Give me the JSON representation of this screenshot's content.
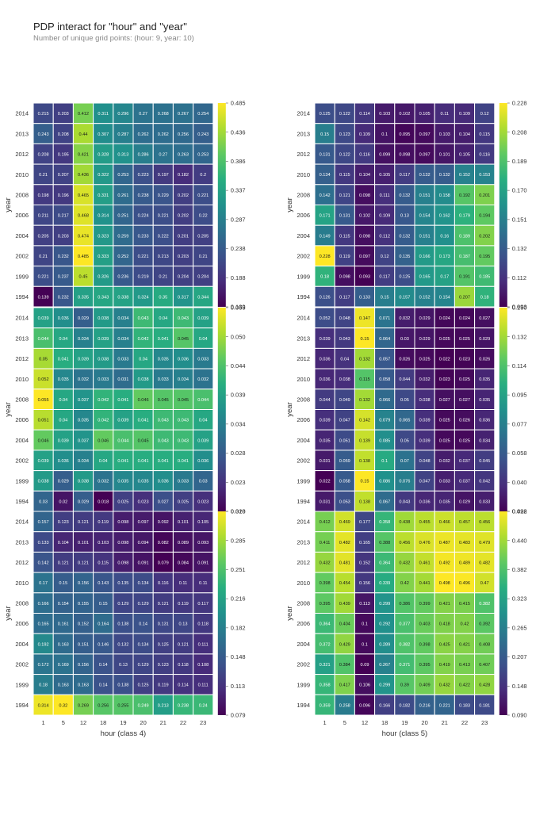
{
  "title": "PDP interact for \"hour\" and \"year\"",
  "subtitle": "Number of unique grid points: (hour: 9, year: 10)",
  "colormap": [
    "#440154",
    "#472d7b",
    "#3b528b",
    "#2c728e",
    "#21918c",
    "#28ae80",
    "#5ec962",
    "#addc30",
    "#fde725"
  ],
  "chart_data": [
    {
      "type": "heatmap",
      "xlabel": "hour (class 0)",
      "ylabel": "year",
      "x": [
        "1",
        "5",
        "12",
        "18",
        "19",
        "20",
        "21",
        "22",
        "23"
      ],
      "y": [
        "2014",
        "2013",
        "2012",
        "2010",
        "2008",
        "2006",
        "2004",
        "2002",
        "1999",
        "1994"
      ],
      "colorbar_ticks": [
        "0.485",
        "0.436",
        "0.386",
        "0.337",
        "0.287",
        "0.238",
        "0.188",
        "0.139"
      ],
      "vmin": 0.139,
      "vmax": 0.485,
      "values": [
        [
          0.215,
          0.203,
          0.412,
          0.311,
          0.296,
          0.27,
          0.268,
          0.267,
          0.254
        ],
        [
          0.243,
          0.208,
          0.44,
          0.307,
          0.287,
          0.262,
          0.262,
          0.256,
          0.243
        ],
        [
          0.208,
          0.195,
          0.421,
          0.328,
          0.313,
          0.286,
          0.27,
          0.263,
          0.253
        ],
        [
          0.21,
          0.207,
          0.436,
          0.322,
          0.253,
          0.223,
          0.197,
          0.182,
          0.2
        ],
        [
          0.198,
          0.196,
          0.465,
          0.331,
          0.261,
          0.238,
          0.229,
          0.202,
          0.221
        ],
        [
          0.211,
          0.217,
          0.468,
          0.314,
          0.251,
          0.224,
          0.221,
          0.202,
          0.22
        ],
        [
          0.205,
          0.203,
          0.474,
          0.323,
          0.259,
          0.233,
          0.222,
          0.201,
          0.205
        ],
        [
          0.21,
          0.232,
          0.485,
          0.333,
          0.252,
          0.221,
          0.213,
          0.203,
          0.21
        ],
        [
          0.221,
          0.237,
          0.45,
          0.326,
          0.236,
          0.219,
          0.21,
          0.204,
          0.204
        ],
        [
          0.139,
          0.232,
          0.335,
          0.343,
          0.338,
          0.324,
          0.35,
          0.317,
          0.344
        ]
      ]
    },
    {
      "type": "heatmap",
      "xlabel": "hour (class 1)",
      "ylabel": "year",
      "x": [
        "1",
        "5",
        "12",
        "18",
        "19",
        "20",
        "21",
        "22",
        "23"
      ],
      "y": [
        "2014",
        "2013",
        "2012",
        "2010",
        "2008",
        "2006",
        "2004",
        "2002",
        "1999",
        "1994"
      ],
      "colorbar_ticks": [
        "0.228",
        "0.208",
        "0.189",
        "0.170",
        "0.151",
        "0.132",
        "0.112",
        "0.093"
      ],
      "vmin": 0.093,
      "vmax": 0.228,
      "values": [
        [
          0.125,
          0.122,
          0.114,
          0.103,
          0.102,
          0.105,
          0.11,
          0.109,
          0.12
        ],
        [
          0.15,
          0.123,
          0.109,
          0.1,
          0.095,
          0.097,
          0.103,
          0.104,
          0.115
        ],
        [
          0.131,
          0.122,
          0.116,
          0.099,
          0.098,
          0.097,
          0.101,
          0.105,
          0.116
        ],
        [
          0.134,
          0.115,
          0.104,
          0.105,
          0.117,
          0.132,
          0.132,
          0.152,
          0.153
        ],
        [
          0.142,
          0.121,
          0.098,
          0.111,
          0.132,
          0.151,
          0.158,
          0.192,
          0.201
        ],
        [
          0.171,
          0.131,
          0.102,
          0.109,
          0.13,
          0.154,
          0.162,
          0.179,
          0.194
        ],
        [
          0.149,
          0.115,
          0.098,
          0.112,
          0.132,
          0.151,
          0.16,
          0.189,
          0.202
        ],
        [
          0.228,
          0.119,
          0.097,
          0.12,
          0.135,
          0.166,
          0.173,
          0.187,
          0.195
        ],
        [
          0.18,
          0.098,
          0.093,
          0.117,
          0.125,
          0.165,
          0.17,
          0.191,
          0.185
        ],
        [
          0.126,
          0.117,
          0.133,
          0.15,
          0.157,
          0.152,
          0.154,
          0.207,
          0.18
        ]
      ]
    },
    {
      "type": "heatmap",
      "xlabel": "hour (class 2)",
      "ylabel": "year",
      "x": [
        "1",
        "5",
        "12",
        "18",
        "19",
        "20",
        "21",
        "22",
        "23"
      ],
      "y": [
        "2014",
        "2013",
        "2012",
        "2010",
        "2008",
        "2006",
        "2004",
        "2002",
        "1999",
        "1994"
      ],
      "colorbar_ticks": [
        "0.055",
        "0.050",
        "0.044",
        "0.039",
        "0.034",
        "0.028",
        "0.023",
        "0.018"
      ],
      "vmin": 0.018,
      "vmax": 0.055,
      "values": [
        [
          0.039,
          0.036,
          0.029,
          0.038,
          0.034,
          0.043,
          0.04,
          0.043,
          0.039
        ],
        [
          0.044,
          0.04,
          0.034,
          0.039,
          0.034,
          0.042,
          0.041,
          0.045,
          0.04
        ],
        [
          0.05,
          0.041,
          0.039,
          0.038,
          0.033,
          0.04,
          0.035,
          0.036,
          0.033
        ],
        [
          0.052,
          0.035,
          0.032,
          0.033,
          0.031,
          0.038,
          0.033,
          0.034,
          0.032
        ],
        [
          0.055,
          0.04,
          0.037,
          0.042,
          0.041,
          0.046,
          0.045,
          0.045,
          0.044
        ],
        [
          0.051,
          0.04,
          0.035,
          0.042,
          0.039,
          0.041,
          0.043,
          0.043,
          0.04
        ],
        [
          0.046,
          0.039,
          0.037,
          0.046,
          0.044,
          0.045,
          0.043,
          0.043,
          0.039
        ],
        [
          0.039,
          0.036,
          0.034,
          0.04,
          0.041,
          0.041,
          0.041,
          0.041,
          0.036
        ],
        [
          0.038,
          0.029,
          0.038,
          0.032,
          0.035,
          0.035,
          0.036,
          0.033,
          0.03
        ],
        [
          0.03,
          0.02,
          0.029,
          0.018,
          0.025,
          0.023,
          0.027,
          0.025,
          0.023
        ]
      ]
    },
    {
      "type": "heatmap",
      "xlabel": "hour (class 3)",
      "ylabel": "year",
      "x": [
        "1",
        "5",
        "12",
        "18",
        "19",
        "20",
        "21",
        "22",
        "23"
      ],
      "y": [
        "2014",
        "2013",
        "2012",
        "2010",
        "2008",
        "2006",
        "2004",
        "2002",
        "1999",
        "1994"
      ],
      "colorbar_ticks": [
        "0.150",
        "0.132",
        "0.114",
        "0.095",
        "0.077",
        "0.058",
        "0.040",
        "0.022"
      ],
      "vmin": 0.022,
      "vmax": 0.15,
      "values": [
        [
          0.052,
          0.048,
          0.147,
          0.071,
          0.032,
          0.029,
          0.024,
          0.024,
          0.027
        ],
        [
          0.039,
          0.043,
          0.15,
          0.064,
          0.03,
          0.029,
          0.025,
          0.025,
          0.029
        ],
        [
          0.036,
          0.04,
          0.132,
          0.057,
          0.026,
          0.025,
          0.022,
          0.023,
          0.026
        ],
        [
          0.036,
          0.038,
          0.115,
          0.058,
          0.044,
          0.032,
          0.023,
          0.025,
          0.035
        ],
        [
          0.044,
          0.049,
          0.132,
          0.066,
          0.05,
          0.038,
          0.027,
          0.027,
          0.035
        ],
        [
          0.039,
          0.047,
          0.142,
          0.079,
          0.065,
          0.039,
          0.025,
          0.026,
          0.036
        ],
        [
          0.035,
          0.051,
          0.139,
          0.085,
          0.05,
          0.039,
          0.025,
          0.025,
          0.034
        ],
        [
          0.031,
          0.059,
          0.138,
          0.1,
          0.07,
          0.048,
          0.032,
          0.037,
          0.045
        ],
        [
          0.022,
          0.058,
          0.15,
          0.086,
          0.076,
          0.047,
          0.033,
          0.037,
          0.042
        ],
        [
          0.031,
          0.053,
          0.138,
          0.067,
          0.043,
          0.036,
          0.035,
          0.029,
          0.033
        ]
      ]
    },
    {
      "type": "heatmap",
      "xlabel": "hour (class 4)",
      "ylabel": "year",
      "x": [
        "1",
        "5",
        "12",
        "18",
        "19",
        "20",
        "21",
        "22",
        "23"
      ],
      "y": [
        "2014",
        "2013",
        "2012",
        "2010",
        "2008",
        "2006",
        "2004",
        "2002",
        "1999",
        "1994"
      ],
      "colorbar_ticks": [
        "0.320",
        "0.285",
        "0.251",
        "0.216",
        "0.182",
        "0.148",
        "0.113",
        "0.079"
      ],
      "vmin": 0.079,
      "vmax": 0.32,
      "values": [
        [
          0.157,
          0.123,
          0.121,
          0.119,
          0.098,
          0.097,
          0.092,
          0.101,
          0.105
        ],
        [
          0.133,
          0.104,
          0.101,
          0.103,
          0.098,
          0.094,
          0.082,
          0.089,
          0.093
        ],
        [
          0.142,
          0.121,
          0.121,
          0.115,
          0.098,
          0.091,
          0.079,
          0.084,
          0.091
        ],
        [
          0.17,
          0.15,
          0.156,
          0.143,
          0.135,
          0.134,
          0.116,
          0.11,
          0.11
        ],
        [
          0.166,
          0.154,
          0.155,
          0.15,
          0.129,
          0.129,
          0.121,
          0.119,
          0.117
        ],
        [
          0.165,
          0.161,
          0.152,
          0.164,
          0.138,
          0.14,
          0.131,
          0.13,
          0.118
        ],
        [
          0.192,
          0.163,
          0.151,
          0.146,
          0.132,
          0.134,
          0.125,
          0.121,
          0.111
        ],
        [
          0.172,
          0.169,
          0.156,
          0.14,
          0.13,
          0.129,
          0.123,
          0.118,
          0.108
        ],
        [
          0.18,
          0.163,
          0.163,
          0.14,
          0.138,
          0.125,
          0.119,
          0.114,
          0.111
        ],
        [
          0.314,
          0.32,
          0.269,
          0.256,
          0.255,
          0.249,
          0.213,
          0.238,
          0.24
        ]
      ]
    },
    {
      "type": "heatmap",
      "xlabel": "hour (class 5)",
      "ylabel": "year",
      "x": [
        "1",
        "5",
        "12",
        "18",
        "19",
        "20",
        "21",
        "22",
        "23"
      ],
      "y": [
        "2014",
        "2013",
        "2012",
        "2010",
        "2008",
        "2006",
        "2004",
        "2002",
        "1999",
        "1994"
      ],
      "colorbar_ticks": [
        "0.498",
        "0.440",
        "0.382",
        "0.323",
        "0.265",
        "0.207",
        "0.148",
        "0.090"
      ],
      "vmin": 0.09,
      "vmax": 0.498,
      "values": [
        [
          0.412,
          0.469,
          0.177,
          0.358,
          0.438,
          0.455,
          0.466,
          0.457,
          0.456
        ],
        [
          0.411,
          0.482,
          0.165,
          0.388,
          0.456,
          0.476,
          0.487,
          0.483,
          0.479
        ],
        [
          0.432,
          0.481,
          0.152,
          0.364,
          0.432,
          0.461,
          0.492,
          0.489,
          0.482
        ],
        [
          0.398,
          0.454,
          0.156,
          0.339,
          0.42,
          0.441,
          0.498,
          0.496,
          0.47
        ],
        [
          0.395,
          0.439,
          0.113,
          0.299,
          0.386,
          0.399,
          0.421,
          0.415,
          0.382
        ],
        [
          0.364,
          0.404,
          0.1,
          0.292,
          0.377,
          0.403,
          0.418,
          0.42,
          0.392
        ],
        [
          0.372,
          0.429,
          0.1,
          0.289,
          0.382,
          0.398,
          0.425,
          0.421,
          0.408
        ],
        [
          0.321,
          0.384,
          0.09,
          0.267,
          0.371,
          0.395,
          0.419,
          0.413,
          0.407
        ],
        [
          0.358,
          0.417,
          0.106,
          0.299,
          0.39,
          0.409,
          0.432,
          0.422,
          0.428
        ],
        [
          0.359,
          0.258,
          0.096,
          0.166,
          0.182,
          0.216,
          0.221,
          0.183,
          0.181
        ]
      ]
    }
  ]
}
